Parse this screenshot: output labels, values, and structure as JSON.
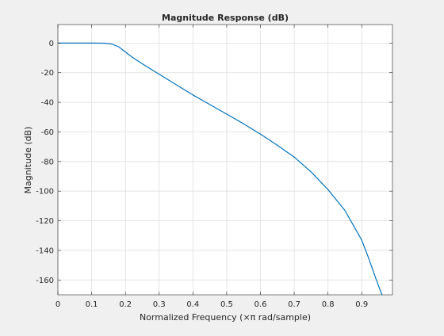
{
  "chart_data": {
    "type": "line",
    "title": "Magnitude Response (dB)",
    "xlabel": "Normalized Frequency (×π rad/sample)",
    "ylabel": "Magnitude (dB)",
    "xlim": [
      0,
      0.991
    ],
    "ylim": [
      -170,
      12.5
    ],
    "xticks": [
      0,
      0.1,
      0.2,
      0.3,
      0.4,
      0.5,
      0.6,
      0.7,
      0.8,
      0.9
    ],
    "xtick_labels": [
      "0",
      "0.1",
      "0.2",
      "0.3",
      "0.4",
      "0.5",
      "0.6",
      "0.7",
      "0.8",
      "0.9"
    ],
    "yticks": [
      0,
      -20,
      -40,
      -60,
      -80,
      -100,
      -120,
      -140,
      -160
    ],
    "ytick_labels": [
      "0",
      "-20",
      "-40",
      "-60",
      "-80",
      "-100",
      "-120",
      "-140",
      "-160"
    ],
    "grid": true,
    "line_color": "#0072bd",
    "series": [
      {
        "x": [
          0,
          0.05,
          0.1,
          0.14,
          0.16,
          0.18,
          0.2,
          0.22,
          0.25,
          0.3,
          0.35,
          0.4,
          0.45,
          0.5,
          0.55,
          0.6,
          0.65,
          0.7,
          0.75,
          0.8,
          0.85,
          0.9,
          0.92,
          0.94,
          0.95,
          0.96
        ],
        "y": [
          0,
          0,
          0,
          -0.1,
          -0.7,
          -2.5,
          -6,
          -9.5,
          -14,
          -21,
          -28,
          -35,
          -41.5,
          -48,
          -54.5,
          -61.5,
          -69,
          -77,
          -87,
          -99,
          -113,
          -133,
          -145,
          -158,
          -164,
          -170
        ]
      }
    ]
  }
}
